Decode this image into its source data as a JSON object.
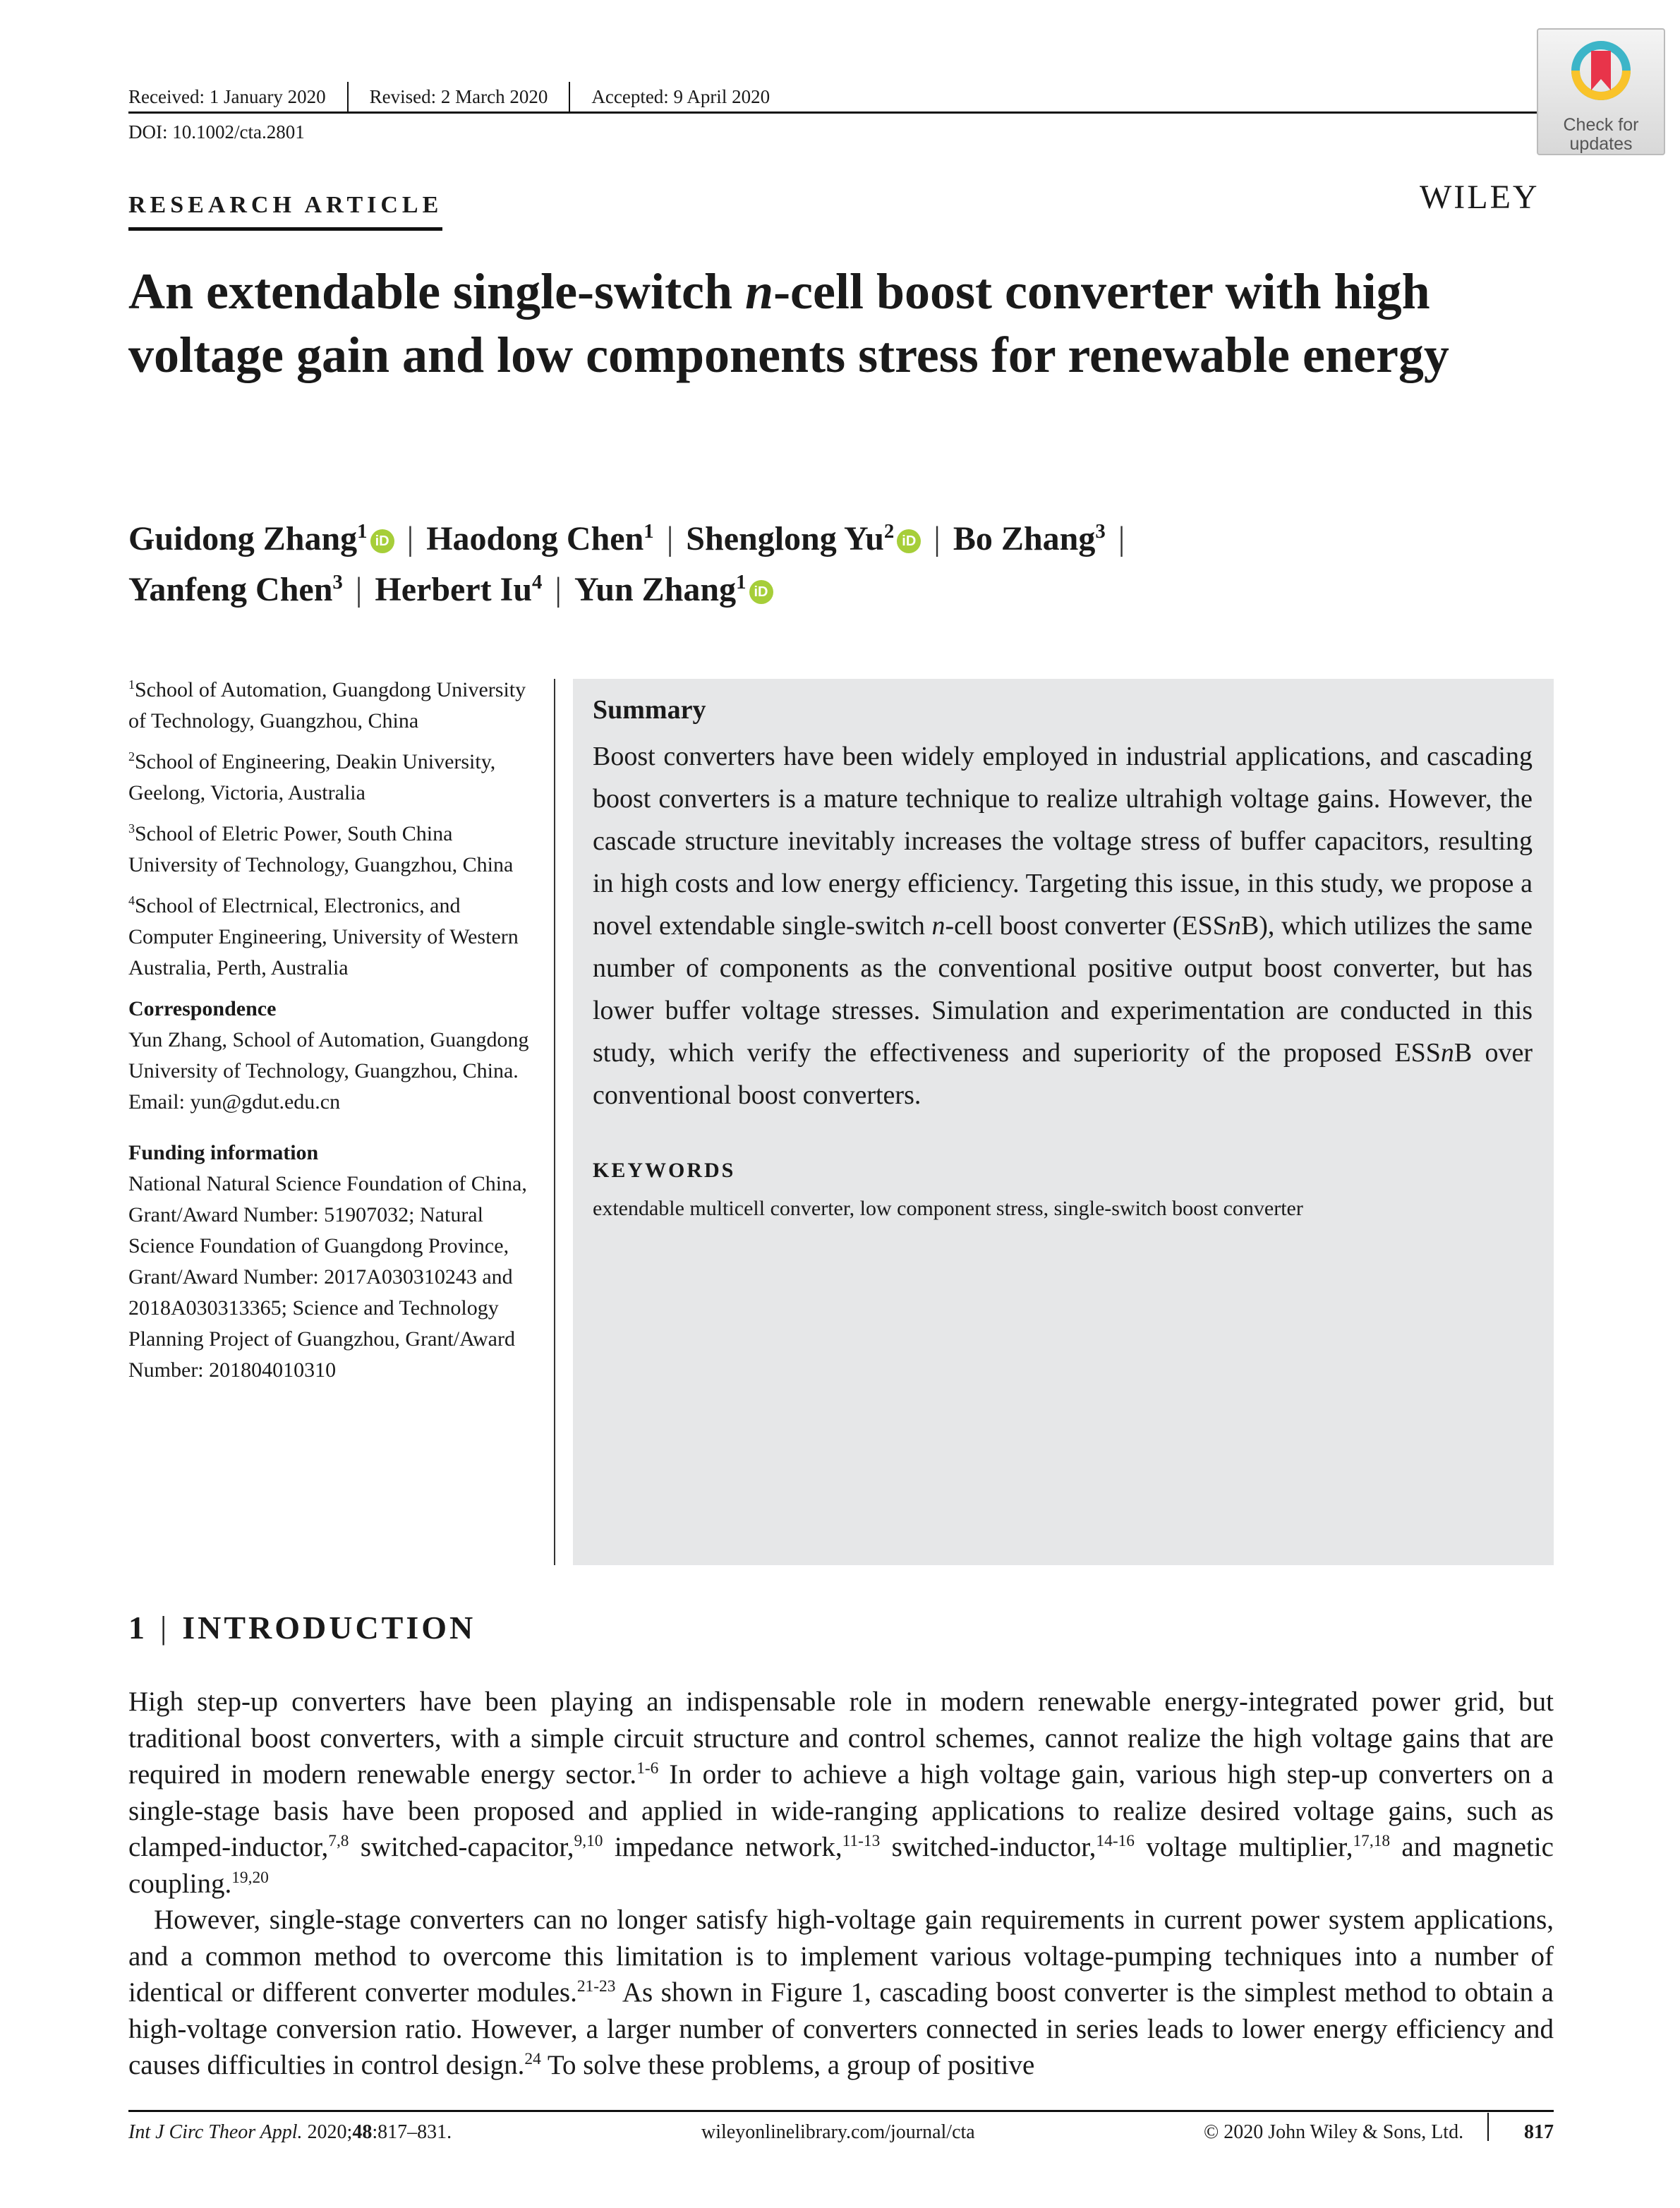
{
  "header": {
    "received": "Received: 1 January 2020",
    "revised": "Revised: 2 March 2020",
    "accepted": "Accepted: 9 April 2020",
    "doi": "DOI: 10.1002/cta.2801",
    "article_type": "RESEARCH ARTICLE",
    "publisher": "WILEY",
    "badge": {
      "line1": "Check for",
      "line2": "updates"
    }
  },
  "title": {
    "pre": "An extendable single-switch ",
    "italic": "n",
    "post": "-cell boost converter with high voltage gain and low components stress for renewable energy"
  },
  "authors": [
    {
      "name": "Guidong Zhang",
      "aff": "1",
      "orcid": true
    },
    {
      "name": "Haodong Chen",
      "aff": "1",
      "orcid": false
    },
    {
      "name": "Shenglong Yu",
      "aff": "2",
      "orcid": true
    },
    {
      "name": "Bo Zhang",
      "aff": "3",
      "orcid": false
    },
    {
      "name": "Yanfeng Chen",
      "aff": "3",
      "orcid": false
    },
    {
      "name": "Herbert Iu",
      "aff": "4",
      "orcid": false
    },
    {
      "name": "Yun Zhang",
      "aff": "1",
      "orcid": true
    }
  ],
  "orcid_label": "iD",
  "affiliations": [
    {
      "num": "1",
      "text": "School of Automation, Guangdong University of Technology, Guangzhou, China"
    },
    {
      "num": "2",
      "text": "School of Engineering, Deakin University, Geelong, Victoria, Australia"
    },
    {
      "num": "3",
      "text": "School of Eletric Power, South China University of Technology, Guangzhou, China"
    },
    {
      "num": "4",
      "text": "School of Electrnical, Electronics, and Computer Engineering, University of Western Australia, Perth, Australia"
    }
  ],
  "correspondence": {
    "heading": "Correspondence",
    "lines": [
      "Yun Zhang, School of Automation, Guangdong University of Technology, Guangzhou, China.",
      "Email: yun@gdut.edu.cn"
    ]
  },
  "funding": {
    "heading": "Funding information",
    "text": "National Natural Science Foundation of China, Grant/Award Number: 51907032; Natural Science Foundation of Guangdong Province, Grant/Award Number: 2017A030310243 and 2018A030313365; Science and Technology Planning Project of Guangzhou, Grant/Award Number: 201804010310"
  },
  "summary": {
    "heading": "Summary",
    "text": "Boost converters have been widely employed in industrial applications, and cascading boost converters is a mature technique to realize ultrahigh voltage gains. However, the cascade structure inevitably increases the voltage stress of buffer capacitors, resulting in high costs and low energy efficiency. Targeting this issue, in this study, we propose a novel extendable single-switch n-cell boost converter (ESSnB), which utilizes the same number of components as the conventional positive output boost converter, but has lower buffer voltage stresses. Simulation and experimentation are conducted in this study, which verify the effectiveness and superiority of the proposed ESSnB over conventional boost converters.",
    "keywords_heading": "KEYWORDS",
    "keywords": "extendable multicell converter, low component stress, single-switch boost converter"
  },
  "intro": {
    "num": "1",
    "heading": "INTRODUCTION",
    "p1": [
      [
        "High step-up converters have been playing an indispensable role in modern renewable energy-integrated power grid, but traditional boost converters, with a simple circuit structure and control schemes, cannot realize the high voltage gains that are required in modern renewable energy sector.",
        "1-6"
      ],
      [
        " In order to achieve a high voltage gain, various high step-up converters on a single-stage basis have been proposed and applied in wide-ranging applications to realize desired voltage gains, such as clamped-inductor,",
        "7,8"
      ],
      [
        " switched-capacitor,",
        "9,10"
      ],
      [
        " impedance network,",
        "11-13"
      ],
      [
        " switched-inductor,",
        "14-16"
      ],
      [
        " voltage multiplier,",
        "17,18"
      ],
      [
        " and magnetic coupling.",
        "19,20"
      ]
    ],
    "p2": [
      [
        "However, single-stage converters can no longer satisfy high-voltage gain requirements in current power system applications, and a common method to overcome this limitation is to implement various voltage-pumping techniques into a number of identical or different converter modules.",
        "21-23"
      ],
      [
        " As shown in Figure 1, cascading boost converter is the simplest method to obtain a high-voltage conversion ratio. However, a larger number of converters connected in series leads to lower energy efficiency and causes difficulties in control design.",
        "24"
      ],
      [
        " To solve these problems, a group of positive",
        ""
      ]
    ]
  },
  "footer": {
    "journal": "Int J Circ Theor Appl.",
    "citation_pre": " 2020;",
    "volume": "48",
    "citation_post": ":817–831.",
    "url": "wileyonlinelibrary.com/journal/cta",
    "copyright": "© 2020 John Wiley & Sons, Ltd.",
    "page": "817"
  }
}
